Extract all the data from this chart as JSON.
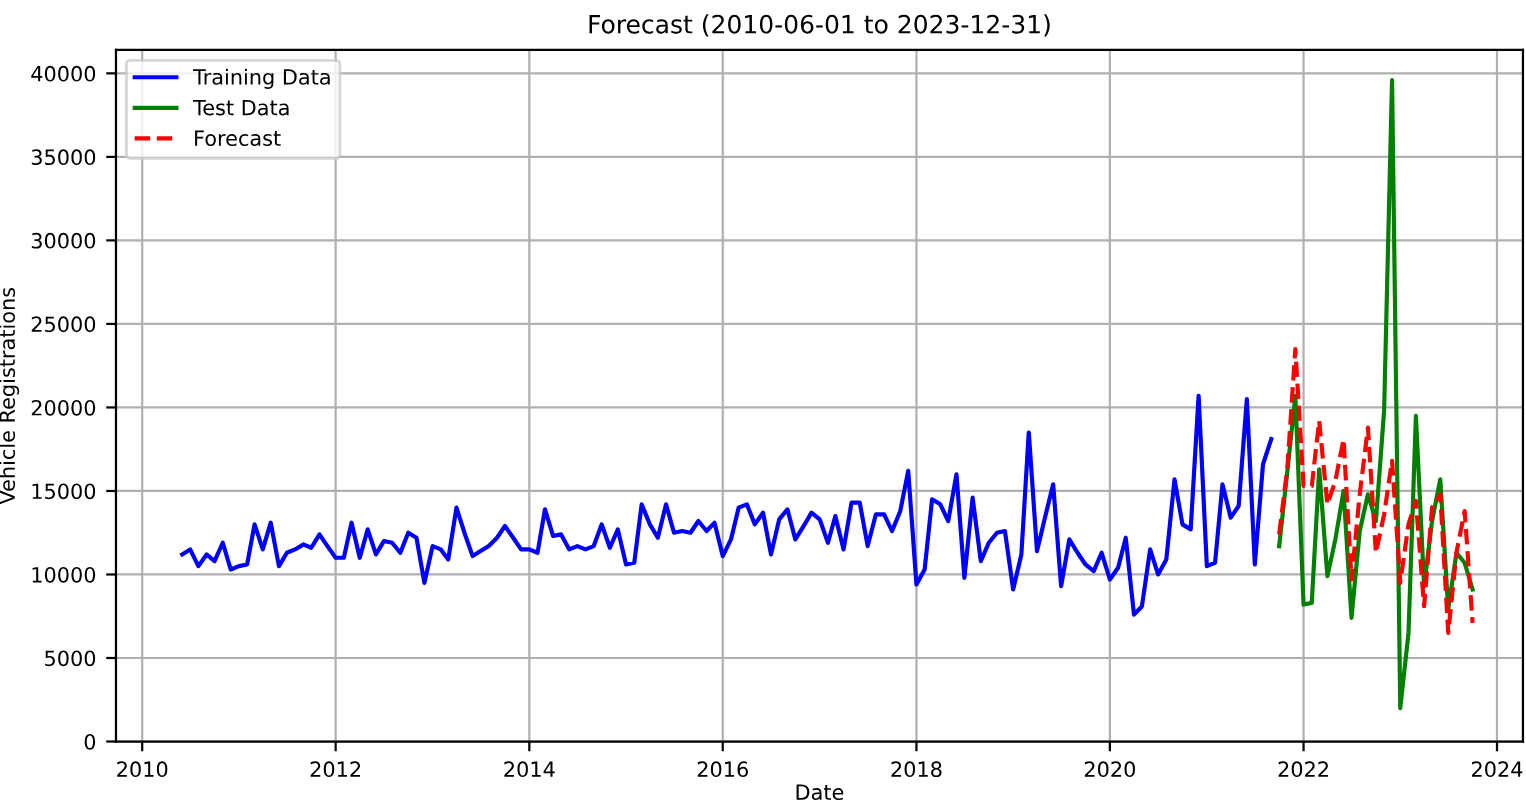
{
  "chart_data": {
    "type": "line",
    "title": "Forecast (2010-06-01 to 2023-12-31)",
    "xlabel": "Date",
    "ylabel": "Vehicle Registrations",
    "xlim": [
      "2009-09-24",
      "2024-04-08"
    ],
    "ylim": [
      0,
      41400
    ],
    "xticks": [
      {
        "value": "2010-01-01",
        "label": "2010"
      },
      {
        "value": "2012-01-01",
        "label": "2012"
      },
      {
        "value": "2014-01-01",
        "label": "2014"
      },
      {
        "value": "2016-01-01",
        "label": "2016"
      },
      {
        "value": "2018-01-01",
        "label": "2018"
      },
      {
        "value": "2020-01-01",
        "label": "2020"
      },
      {
        "value": "2022-01-01",
        "label": "2022"
      },
      {
        "value": "2024-01-01",
        "label": "2024"
      }
    ],
    "yticks": [
      0,
      5000,
      10000,
      15000,
      20000,
      25000,
      30000,
      35000,
      40000
    ],
    "grid": true,
    "legend": "top left",
    "series": [
      {
        "name": "Training Data",
        "color": "#0000ff",
        "line_style": "solid",
        "x": [
          "2010-06",
          "2010-07",
          "2010-08",
          "2010-09",
          "2010-10",
          "2010-11",
          "2010-12",
          "2011-01",
          "2011-02",
          "2011-03",
          "2011-04",
          "2011-05",
          "2011-06",
          "2011-07",
          "2011-08",
          "2011-09",
          "2011-10",
          "2011-11",
          "2011-12",
          "2012-01",
          "2012-02",
          "2012-03",
          "2012-04",
          "2012-05",
          "2012-06",
          "2012-07",
          "2012-08",
          "2012-09",
          "2012-10",
          "2012-11",
          "2012-12",
          "2013-01",
          "2013-02",
          "2013-03",
          "2013-04",
          "2013-05",
          "2013-06",
          "2013-07",
          "2013-08",
          "2013-09",
          "2013-10",
          "2013-11",
          "2013-12",
          "2014-01",
          "2014-02",
          "2014-03",
          "2014-04",
          "2014-05",
          "2014-06",
          "2014-07",
          "2014-08",
          "2014-09",
          "2014-10",
          "2014-11",
          "2014-12",
          "2015-01",
          "2015-02",
          "2015-03",
          "2015-04",
          "2015-05",
          "2015-06",
          "2015-07",
          "2015-08",
          "2015-09",
          "2015-10",
          "2015-11",
          "2015-12",
          "2016-01",
          "2016-02",
          "2016-03",
          "2016-04",
          "2016-05",
          "2016-06",
          "2016-07",
          "2016-08",
          "2016-09",
          "2016-10",
          "2016-11",
          "2016-12",
          "2017-01",
          "2017-02",
          "2017-03",
          "2017-04",
          "2017-05",
          "2017-06",
          "2017-07",
          "2017-08",
          "2017-09",
          "2017-10",
          "2017-11",
          "2017-12",
          "2018-01",
          "2018-02",
          "2018-03",
          "2018-04",
          "2018-05",
          "2018-06",
          "2018-07",
          "2018-08",
          "2018-09",
          "2018-10",
          "2018-11",
          "2018-12",
          "2019-01",
          "2019-02",
          "2019-03",
          "2019-04",
          "2019-05",
          "2019-06",
          "2019-07",
          "2019-08",
          "2019-09",
          "2019-10",
          "2019-11",
          "2019-12",
          "2020-01",
          "2020-02",
          "2020-03",
          "2020-04",
          "2020-05",
          "2020-06",
          "2020-07",
          "2020-08",
          "2020-09",
          "2020-10",
          "2020-11",
          "2020-12",
          "2021-01",
          "2021-02",
          "2021-03",
          "2021-04",
          "2021-05",
          "2021-06",
          "2021-07",
          "2021-08",
          "2021-09"
        ],
        "values": [
          11200,
          11500,
          10500,
          11200,
          10800,
          11900,
          10300,
          10500,
          10600,
          13000,
          11500,
          13100,
          10500,
          11300,
          11500,
          11800,
          11600,
          12400,
          11700,
          11000,
          11000,
          13100,
          11000,
          12700,
          11200,
          12000,
          11900,
          11300,
          12500,
          12200,
          9500,
          11700,
          11500,
          10900,
          14000,
          12500,
          11100,
          11400,
          11700,
          12200,
          12900,
          12200,
          11500,
          11500,
          11300,
          13900,
          12300,
          12400,
          11500,
          11700,
          11500,
          11700,
          13000,
          11600,
          12700,
          10600,
          10700,
          14200,
          13000,
          12200,
          14200,
          12500,
          12600,
          12500,
          13200,
          12600,
          13100,
          11100,
          12100,
          14000,
          14200,
          13000,
          13700,
          11200,
          13300,
          13900,
          12100,
          12900,
          13700,
          13300,
          11900,
          13500,
          11500,
          14300,
          14300,
          11700,
          13600,
          13600,
          12600,
          13800,
          16200,
          9400,
          10300,
          14500,
          14200,
          13200,
          16000,
          9800,
          14600,
          10800,
          11900,
          12500,
          12600,
          9100,
          11200,
          18500,
          11400,
          13400,
          15400,
          9300,
          12100,
          11300,
          10600,
          10200,
          11300,
          9700,
          10400,
          12200,
          7600,
          8100,
          11500,
          10000,
          10900,
          15700,
          13000,
          12700,
          20700,
          10500,
          10700,
          15400,
          13400,
          14100,
          20500,
          10600,
          16600,
          18100
        ]
      },
      {
        "name": "Test Data",
        "color": "#008000",
        "line_style": "solid",
        "x": [
          "2021-10",
          "2021-11",
          "2021-12",
          "2022-01",
          "2022-02",
          "2022-03",
          "2022-04",
          "2022-05",
          "2022-06",
          "2022-07",
          "2022-08",
          "2022-09",
          "2022-10",
          "2022-11",
          "2022-12",
          "2023-01",
          "2023-02",
          "2023-03",
          "2023-04",
          "2023-05",
          "2023-06",
          "2023-07",
          "2023-08",
          "2023-09",
          "2023-10"
        ],
        "values": [
          11700,
          16200,
          20700,
          8200,
          8300,
          16300,
          9900,
          12100,
          15000,
          7400,
          12600,
          14800,
          13200,
          19800,
          39600,
          2000,
          6500,
          19500,
          9300,
          13200,
          15700,
          7900,
          11300,
          10700,
          9100
        ]
      },
      {
        "name": "Forecast",
        "color": "#ff0000",
        "line_style": "dashed",
        "x": [
          "2021-10",
          "2021-11",
          "2021-12",
          "2022-01",
          "2022-02",
          "2022-03",
          "2022-04",
          "2022-05",
          "2022-06",
          "2022-07",
          "2022-08",
          "2022-09",
          "2022-10",
          "2022-11",
          "2022-12",
          "2023-01",
          "2023-02",
          "2023-03",
          "2023-04",
          "2023-05",
          "2023-06",
          "2023-07",
          "2023-08",
          "2023-09",
          "2023-10"
        ],
        "values": [
          12400,
          16400,
          23500,
          15300,
          15300,
          19200,
          14200,
          15600,
          18100,
          9700,
          14800,
          18800,
          11300,
          13600,
          16800,
          9500,
          13000,
          14400,
          8100,
          14000,
          14800,
          6500,
          11300,
          13800,
          7100
        ]
      }
    ]
  }
}
